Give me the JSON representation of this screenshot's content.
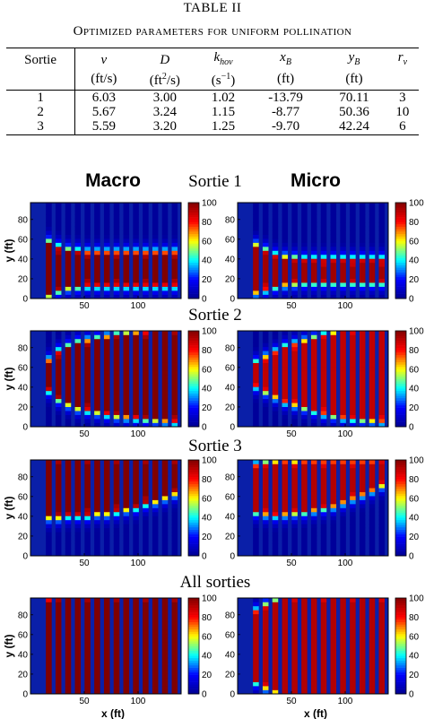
{
  "table": {
    "number": "TABLE II",
    "title": "Optimized parameters for uniform pollination",
    "headers": [
      {
        "main": "Sortie",
        "unit": ""
      },
      {
        "main": "v",
        "unit": "(ft/s)"
      },
      {
        "main": "D",
        "unit": "(ft2/s)"
      },
      {
        "main": "k_hov",
        "unit": "(s-1)"
      },
      {
        "main": "x_B",
        "unit": "(ft)"
      },
      {
        "main": "y_B",
        "unit": "(ft)"
      },
      {
        "main": "r_v",
        "unit": ""
      }
    ],
    "rows": [
      [
        "1",
        "6.03",
        "3.00",
        "1.02",
        "-13.79",
        "70.11",
        "3"
      ],
      [
        "2",
        "5.67",
        "3.24",
        "1.15",
        "-8.77",
        "50.36",
        "10"
      ],
      [
        "3",
        "5.59",
        "3.20",
        "1.25",
        "-9.70",
        "42.24",
        "6"
      ]
    ]
  },
  "figure": {
    "column_titles": [
      "Macro",
      "Micro"
    ],
    "row_titles": [
      "Sortie 1",
      "Sortie 2",
      "Sortie 3",
      "All sorties"
    ],
    "colorbar_ticks": [
      "0",
      "20",
      "40",
      "60",
      "80",
      "100"
    ],
    "colormap": [
      "#00008f",
      "#0000ff",
      "#00ffff",
      "#ffff00",
      "#ff0000",
      "#800000"
    ],
    "background_color": "#0a1fa8"
  },
  "chart_data": {
    "type": "heatmap",
    "ylabel": "y (ft)",
    "xlabel": "x (ft)",
    "x_ticks": [
      50,
      100
    ],
    "y_ticks": [
      0,
      20,
      40,
      60,
      80
    ],
    "xlim": [
      0,
      140
    ],
    "ylim": [
      0,
      97
    ],
    "zlim": [
      0,
      100
    ],
    "row_strip_x": [
      17,
      26,
      35,
      44,
      53,
      62,
      71,
      80,
      89,
      98,
      107,
      116,
      125,
      134
    ],
    "panels": [
      {
        "row": "Sortie 1",
        "col": "Macro",
        "band_center_y": [
          30,
          30,
          30,
          30,
          30,
          30,
          30,
          30,
          30,
          30,
          30,
          30,
          30,
          30
        ],
        "band_half_width_y": [
          25,
          20,
          17,
          16,
          15,
          15,
          15,
          15,
          15,
          15,
          15,
          15,
          15,
          15
        ],
        "peak": 100
      },
      {
        "row": "Sortie 1",
        "col": "Micro",
        "band_center_y": [
          30,
          29,
          28,
          28,
          28,
          28,
          28,
          28,
          28,
          28,
          28,
          28,
          28,
          28
        ],
        "band_half_width_y": [
          22,
          18,
          14,
          12,
          11,
          10,
          10,
          10,
          10,
          10,
          10,
          10,
          10,
          10
        ],
        "peak": 95
      },
      {
        "row": "Sortie 2",
        "col": "Macro",
        "band_center_y": [
          52,
          52,
          52,
          52,
          52,
          52,
          52,
          52,
          52,
          52,
          52,
          52,
          52,
          52
        ],
        "band_half_width_y": [
          13,
          22,
          27,
          31,
          33,
          35,
          37,
          39,
          40,
          41,
          42,
          43,
          44,
          45
        ],
        "peak": 100
      },
      {
        "row": "Sortie 2",
        "col": "Micro",
        "band_center_y": [
          53,
          53,
          53,
          53,
          53,
          53,
          53,
          53,
          53,
          53,
          53,
          53,
          53,
          53
        ],
        "band_half_width_y": [
          10,
          16,
          21,
          26,
          29,
          32,
          35,
          38,
          40,
          42,
          43,
          44,
          45,
          46
        ],
        "peak": 90
      },
      {
        "row": "Sortie 3",
        "col": "Macro",
        "band_center_y": [
          68,
          68,
          69,
          69,
          69,
          70,
          70,
          71,
          72,
          73,
          75,
          76,
          78,
          80
        ],
        "band_half_width_y": [
          27,
          27,
          26,
          26,
          26,
          25,
          25,
          24,
          23,
          22,
          20,
          19,
          17,
          15
        ],
        "peak": 100
      },
      {
        "row": "Sortie 3",
        "col": "Micro",
        "band_center_y": [
          68,
          68,
          68,
          69,
          69,
          70,
          71,
          72,
          73,
          75,
          77,
          79,
          81,
          84
        ],
        "band_half_width_y": [
          22,
          24,
          25,
          25,
          24,
          24,
          23,
          22,
          21,
          19,
          17,
          15,
          13,
          11
        ],
        "peak": 92
      },
      {
        "row": "All sorties",
        "col": "Macro",
        "band_center_y": [
          48,
          48,
          48,
          48,
          48,
          48,
          48,
          48,
          48,
          48,
          48,
          48,
          48,
          48
        ],
        "band_half_width_y": [
          46,
          50,
          50,
          50,
          50,
          50,
          50,
          50,
          50,
          50,
          50,
          50,
          50,
          50
        ],
        "peak": 100
      },
      {
        "row": "All sorties",
        "col": "Micro",
        "band_center_y": [
          48,
          48,
          48,
          48,
          48,
          48,
          48,
          48,
          48,
          48,
          48,
          48,
          48,
          48
        ],
        "band_half_width_y": [
          34,
          40,
          44,
          47,
          50,
          50,
          50,
          50,
          50,
          50,
          50,
          50,
          50,
          50
        ],
        "peak": 92
      }
    ]
  }
}
